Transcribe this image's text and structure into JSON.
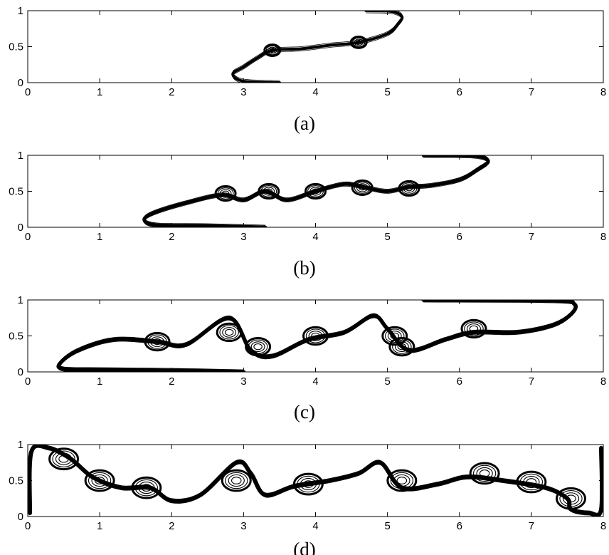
{
  "figure": {
    "panels": [
      {
        "caption": "(a)"
      },
      {
        "caption": "(b)"
      },
      {
        "caption": "(c)"
      },
      {
        "caption": "(d)"
      }
    ]
  },
  "chart_data": {
    "type": "contour",
    "title": "",
    "xlabel": "",
    "ylabel": "",
    "xlim": [
      0,
      8
    ],
    "ylim": [
      0,
      1
    ],
    "x_ticks": [
      "0",
      "1",
      "2",
      "3",
      "4",
      "5",
      "6",
      "7",
      "8"
    ],
    "y_ticks": [
      "0",
      "0.5",
      "1"
    ],
    "panels": [
      {
        "caption": "(a)",
        "interface": [
          [
            3.5,
            0
          ],
          [
            3.0,
            0.02
          ],
          [
            2.85,
            0.12
          ],
          [
            3.0,
            0.22
          ],
          [
            3.2,
            0.35
          ],
          [
            3.4,
            0.45
          ],
          [
            3.8,
            0.47
          ],
          [
            4.2,
            0.52
          ],
          [
            4.6,
            0.56
          ],
          [
            5.0,
            0.68
          ],
          [
            5.15,
            0.82
          ],
          [
            5.2,
            0.92
          ],
          [
            5.05,
            0.99
          ],
          [
            4.7,
            1.0
          ]
        ],
        "vortex_centers": [
          [
            3.4,
            0.45
          ],
          [
            4.6,
            0.56
          ]
        ]
      },
      {
        "caption": "(b)",
        "interface": [
          [
            3.3,
            0
          ],
          [
            2.5,
            0.02
          ],
          [
            1.8,
            0.03
          ],
          [
            1.62,
            0.1
          ],
          [
            1.75,
            0.2
          ],
          [
            2.2,
            0.34
          ],
          [
            2.7,
            0.45
          ],
          [
            3.0,
            0.38
          ],
          [
            3.3,
            0.5
          ],
          [
            3.6,
            0.38
          ],
          [
            4.0,
            0.5
          ],
          [
            4.4,
            0.6
          ],
          [
            4.7,
            0.55
          ],
          [
            5.0,
            0.5
          ],
          [
            5.3,
            0.56
          ],
          [
            5.6,
            0.58
          ],
          [
            6.0,
            0.66
          ],
          [
            6.25,
            0.8
          ],
          [
            6.4,
            0.92
          ],
          [
            6.2,
            0.99
          ],
          [
            5.5,
            1.0
          ]
        ],
        "vortex_centers": [
          [
            2.75,
            0.47
          ],
          [
            3.35,
            0.5
          ],
          [
            4.0,
            0.5
          ],
          [
            4.65,
            0.55
          ],
          [
            5.3,
            0.54
          ]
        ]
      },
      {
        "caption": "(c)",
        "interface": [
          [
            3.0,
            0
          ],
          [
            2.0,
            0.02
          ],
          [
            1.0,
            0.03
          ],
          [
            0.5,
            0.04
          ],
          [
            0.45,
            0.12
          ],
          [
            0.7,
            0.3
          ],
          [
            1.2,
            0.45
          ],
          [
            1.8,
            0.42
          ],
          [
            2.2,
            0.38
          ],
          [
            2.8,
            0.75
          ],
          [
            3.1,
            0.3
          ],
          [
            3.4,
            0.22
          ],
          [
            3.9,
            0.45
          ],
          [
            4.4,
            0.55
          ],
          [
            4.8,
            0.78
          ],
          [
            5.0,
            0.6
          ],
          [
            5.3,
            0.3
          ],
          [
            5.8,
            0.45
          ],
          [
            6.2,
            0.55
          ],
          [
            6.8,
            0.55
          ],
          [
            7.3,
            0.65
          ],
          [
            7.55,
            0.8
          ],
          [
            7.6,
            0.94
          ],
          [
            7.3,
            0.99
          ],
          [
            5.5,
            1.0
          ]
        ],
        "vortex_centers": [
          [
            1.8,
            0.42
          ],
          [
            2.8,
            0.55
          ],
          [
            3.2,
            0.35
          ],
          [
            4.0,
            0.5
          ],
          [
            5.1,
            0.5
          ],
          [
            5.2,
            0.35
          ],
          [
            6.2,
            0.6
          ]
        ]
      },
      {
        "caption": "(d)",
        "interface": [
          [
            0.03,
            0.05
          ],
          [
            0.05,
            0.9
          ],
          [
            0.3,
            0.95
          ],
          [
            0.6,
            0.8
          ],
          [
            0.9,
            0.55
          ],
          [
            1.3,
            0.4
          ],
          [
            1.7,
            0.4
          ],
          [
            2.0,
            0.22
          ],
          [
            2.4,
            0.3
          ],
          [
            2.9,
            0.75
          ],
          [
            3.1,
            0.6
          ],
          [
            3.3,
            0.3
          ],
          [
            3.7,
            0.42
          ],
          [
            4.2,
            0.5
          ],
          [
            4.6,
            0.6
          ],
          [
            4.9,
            0.75
          ],
          [
            5.2,
            0.4
          ],
          [
            5.7,
            0.45
          ],
          [
            6.1,
            0.55
          ],
          [
            6.6,
            0.5
          ],
          [
            7.2,
            0.4
          ],
          [
            7.5,
            0.25
          ],
          [
            7.55,
            0.1
          ],
          [
            7.8,
            0.05
          ],
          [
            7.97,
            0.1
          ],
          [
            7.97,
            0.95
          ]
        ],
        "vortex_centers": [
          [
            0.5,
            0.8
          ],
          [
            1.0,
            0.5
          ],
          [
            1.65,
            0.4
          ],
          [
            2.9,
            0.5
          ],
          [
            3.9,
            0.45
          ],
          [
            5.2,
            0.5
          ],
          [
            6.35,
            0.6
          ],
          [
            7.0,
            0.48
          ],
          [
            7.55,
            0.25
          ]
        ]
      }
    ]
  }
}
